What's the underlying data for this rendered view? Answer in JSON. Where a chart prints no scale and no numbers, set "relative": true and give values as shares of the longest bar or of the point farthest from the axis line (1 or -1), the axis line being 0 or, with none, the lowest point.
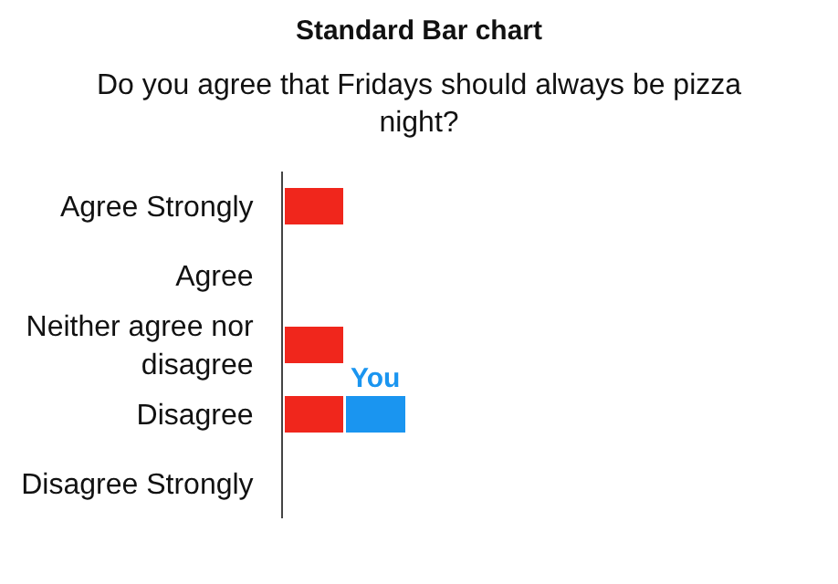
{
  "chart_data": {
    "type": "bar",
    "orientation": "horizontal",
    "stacked": true,
    "relative": true,
    "title": "Standard Bar chart",
    "subtitle": "Do you agree that Fridays should always be pizza night?",
    "categories": [
      "Agree Strongly",
      "Agree",
      "Neither agree nor disagree",
      "Disagree",
      "Disagree Strongly"
    ],
    "series": [
      {
        "color": "#f0261c",
        "values": [
          0.5,
          null,
          0.5,
          0.5,
          null
        ]
      },
      {
        "name": "You",
        "color": "#1a95f0",
        "values": [
          null,
          null,
          null,
          0.5,
          null
        ]
      }
    ],
    "legend": false,
    "tick_labels": "y"
  }
}
